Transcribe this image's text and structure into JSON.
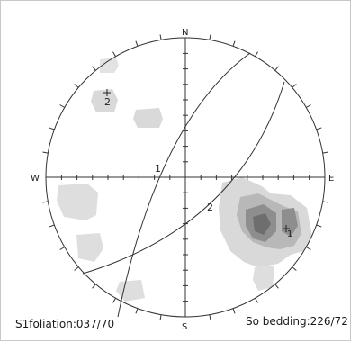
{
  "directions": {
    "north": "N",
    "south": "S",
    "east": "E",
    "west": "W"
  },
  "planes": [
    {
      "label": "1",
      "strike": 37,
      "dip": 70
    },
    {
      "label": "2",
      "strike": 226,
      "dip": 72
    }
  ],
  "poles": [
    {
      "label": "2"
    },
    {
      "label": "1"
    }
  ],
  "captions": {
    "left": "S1foliation:037/70",
    "right": "So bedding:226/72"
  },
  "colors": {
    "outline": "#333333",
    "density_light": "#d9d9d9",
    "density_mid": "#b5b5b5",
    "density_dark": "#6e6e6e"
  }
}
